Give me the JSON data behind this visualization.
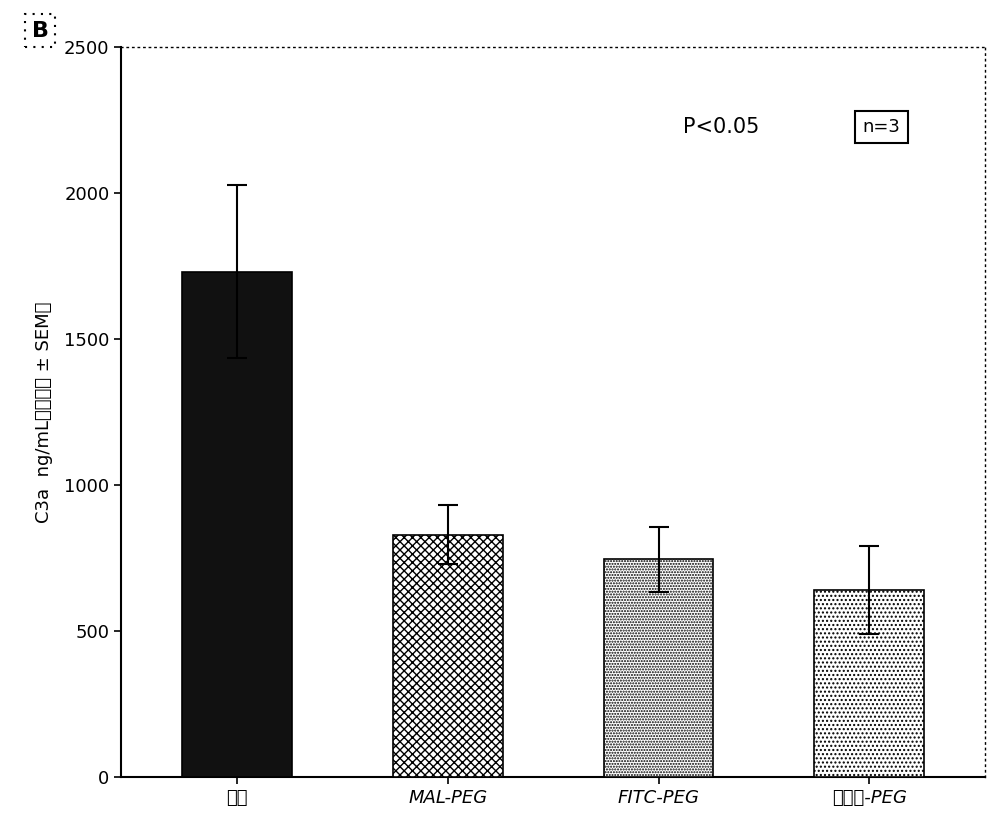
{
  "categories": [
    "对照",
    "MAL-PEG",
    "FITC-PEG",
    "生物素-PEG"
  ],
  "values": [
    1730,
    830,
    745,
    640
  ],
  "errors": [
    295,
    100,
    110,
    150
  ],
  "ylabel_part1": "C3a  ng/mL",
  "ylabel_part2": "（平均値 ± SEM）",
  "ylim": [
    0,
    2500
  ],
  "yticks": [
    0,
    500,
    1000,
    1500,
    2000,
    2500
  ],
  "p_text": "P<0.05",
  "n_text": "n=3",
  "panel_label": "B",
  "background_color": "#ffffff",
  "plot_background": "#ffffff",
  "tick_fontsize": 13,
  "label_fontsize": 13,
  "annotation_fontsize": 15
}
